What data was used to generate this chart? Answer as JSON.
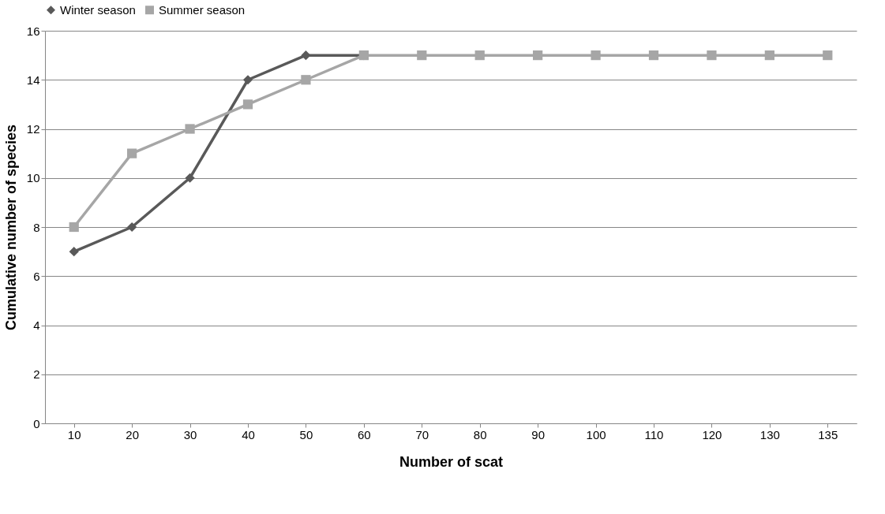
{
  "chart_data": {
    "type": "line",
    "xlabel": "Number of scat",
    "ylabel": "Cumulative number of species",
    "categories": [
      "10",
      "20",
      "30",
      "40",
      "50",
      "60",
      "70",
      "80",
      "90",
      "100",
      "110",
      "120",
      "130",
      "135"
    ],
    "series": [
      {
        "name": "Winter season",
        "color": "#595959",
        "marker": "diamond",
        "values": [
          7,
          8,
          10,
          14,
          15,
          15,
          null,
          null,
          null,
          null,
          null,
          null,
          null,
          null
        ]
      },
      {
        "name": "Summer season",
        "color": "#a6a6a6",
        "marker": "square",
        "values": [
          8,
          11,
          12,
          13,
          14,
          15,
          15,
          15,
          15,
          15,
          15,
          15,
          15,
          15
        ]
      }
    ],
    "ylim": [
      0,
      16
    ],
    "yticks": [
      0,
      2,
      4,
      6,
      8,
      10,
      12,
      14,
      16
    ],
    "grid": "y",
    "legend": "top",
    "line_style": "solid"
  }
}
